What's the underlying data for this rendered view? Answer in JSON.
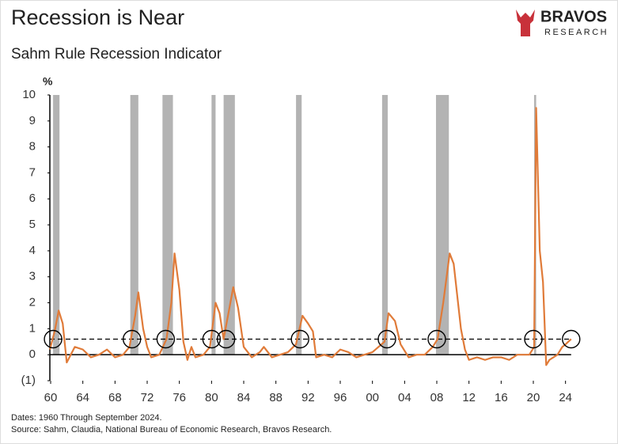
{
  "logo": {
    "name": "BRAVOS",
    "tagline": "RESEARCH"
  },
  "chart_data": {
    "type": "line",
    "title": "Recession is Near",
    "subtitle": "Sahm Rule Recession Indicator",
    "y_unit": "%",
    "notes": [
      "Dates: 1960 Through September 2024.",
      "Source: Sahm, Claudia, National Bureau of Economic Research, Bravos Research."
    ],
    "xlim": [
      1959.9,
      2026
    ],
    "ylim": [
      -1,
      10
    ],
    "xticks": [
      {
        "value": 1960,
        "label": "60"
      },
      {
        "value": 1964,
        "label": "64"
      },
      {
        "value": 1968,
        "label": "68"
      },
      {
        "value": 1972,
        "label": "72"
      },
      {
        "value": 1976,
        "label": "76"
      },
      {
        "value": 1980,
        "label": "80"
      },
      {
        "value": 1984,
        "label": "84"
      },
      {
        "value": 1988,
        "label": "88"
      },
      {
        "value": 1992,
        "label": "92"
      },
      {
        "value": 1996,
        "label": "96"
      },
      {
        "value": 2000,
        "label": "00"
      },
      {
        "value": 2004,
        "label": "04"
      },
      {
        "value": 2008,
        "label": "08"
      },
      {
        "value": 2012,
        "label": "12"
      },
      {
        "value": 2016,
        "label": "16"
      },
      {
        "value": 2020,
        "label": "20"
      },
      {
        "value": 2024,
        "label": "24"
      }
    ],
    "yticks": [
      {
        "value": -1,
        "label": "(1)"
      },
      0,
      1,
      2,
      3,
      4,
      5,
      6,
      7,
      8,
      9,
      10
    ],
    "recessions": [
      [
        1960.3,
        1961.1
      ],
      [
        1969.9,
        1970.9
      ],
      [
        1973.9,
        1975.2
      ],
      [
        1980.0,
        1980.5
      ],
      [
        1981.5,
        1982.9
      ],
      [
        1990.5,
        1991.2
      ],
      [
        2001.2,
        2001.9
      ],
      [
        2007.9,
        2009.5
      ],
      [
        2020.1,
        2020.35
      ]
    ],
    "recession_color": "#b3b3b3",
    "threshold": 0.6,
    "crossings": [
      1960.3,
      1970.1,
      1974.3,
      1980.0,
      1981.8,
      1991.0,
      2001.8,
      2008.0,
      2020.0,
      2024.7
    ],
    "x": [
      1959.9,
      1960.5,
      1961.0,
      1961.5,
      1962.0,
      1963.0,
      1964.0,
      1965.0,
      1966.0,
      1967.0,
      1968.0,
      1969.0,
      1969.8,
      1970.5,
      1970.9,
      1971.5,
      1972.0,
      1972.5,
      1973.5,
      1974.4,
      1975.0,
      1975.4,
      1976.0,
      1976.5,
      1977.0,
      1977.5,
      1978.0,
      1979.0,
      1979.8,
      1980.5,
      1981.0,
      1981.5,
      1982.7,
      1983.3,
      1984.0,
      1985.0,
      1986.0,
      1986.5,
      1987.5,
      1988.5,
      1989.5,
      1990.5,
      1991.3,
      1992.0,
      1992.6,
      1993.0,
      1994.0,
      1995.0,
      1996.0,
      1997.0,
      1998.0,
      1999.0,
      2000.0,
      2001.5,
      2002.0,
      2002.8,
      2003.5,
      2004.5,
      2005.5,
      2006.5,
      2007.5,
      2008.1,
      2008.8,
      2009.6,
      2010.1,
      2011.0,
      2011.5,
      2012.0,
      2013.0,
      2014.0,
      2015.0,
      2016.0,
      2017.0,
      2018.0,
      2019.5,
      2020.1,
      2020.35,
      2020.8,
      2021.2,
      2021.6,
      2022.0,
      2022.5,
      2023.0,
      2023.6,
      2024.0,
      2024.7
    ],
    "series": [
      {
        "name": "Sahm Rule",
        "color": "#e07b39",
        "values": [
          0.2,
          0.9,
          1.7,
          1.2,
          -0.3,
          0.3,
          0.2,
          -0.1,
          0.0,
          0.2,
          -0.1,
          0.0,
          0.3,
          1.5,
          2.4,
          1.0,
          0.3,
          -0.1,
          0.0,
          0.6,
          2.0,
          3.9,
          2.5,
          0.5,
          -0.2,
          0.3,
          -0.1,
          0.0,
          0.3,
          2.0,
          1.6,
          0.6,
          2.6,
          1.8,
          0.3,
          -0.1,
          0.1,
          0.3,
          -0.1,
          0.0,
          0.1,
          0.4,
          1.5,
          1.2,
          0.9,
          -0.1,
          0.0,
          -0.1,
          0.2,
          0.1,
          -0.1,
          0.0,
          0.1,
          0.5,
          1.6,
          1.3,
          0.4,
          -0.1,
          0.0,
          0.0,
          0.3,
          0.6,
          2.0,
          3.9,
          3.5,
          1.0,
          0.2,
          -0.2,
          -0.1,
          -0.2,
          -0.1,
          -0.1,
          -0.2,
          0.0,
          0.0,
          0.3,
          9.5,
          4.0,
          2.8,
          -0.4,
          -0.2,
          -0.1,
          0.0,
          0.3,
          0.4,
          0.6
        ]
      }
    ]
  }
}
